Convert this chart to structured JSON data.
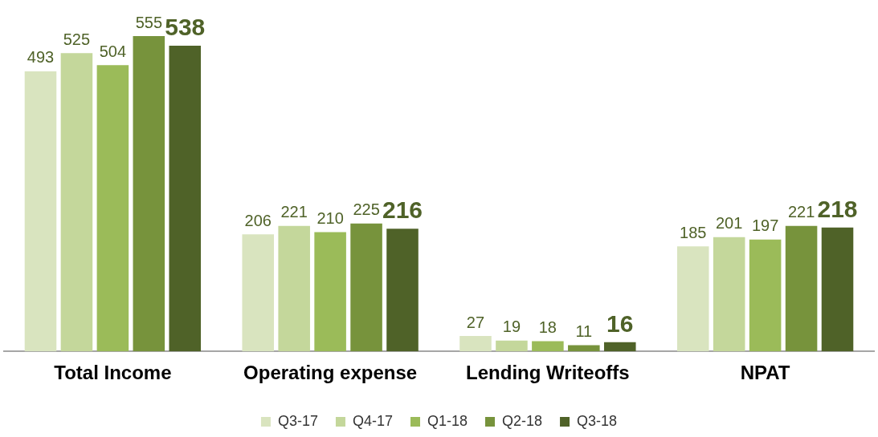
{
  "chart_data": {
    "type": "bar",
    "categories": [
      "Total Income",
      "Operating expense",
      "Lending Writeoffs",
      "NPAT"
    ],
    "series": [
      {
        "name": "Q3-17",
        "color": "#d9e4bf",
        "values": [
          493,
          206,
          27,
          185
        ]
      },
      {
        "name": "Q4-17",
        "color": "#c4d79b",
        "values": [
          525,
          221,
          19,
          201
        ]
      },
      {
        "name": "Q1-18",
        "color": "#9bbb59",
        "values": [
          504,
          210,
          18,
          197
        ]
      },
      {
        "name": "Q2-18",
        "color": "#77933c",
        "values": [
          555,
          225,
          11,
          221
        ]
      },
      {
        "name": "Q3-18",
        "color": "#4f6228",
        "values": [
          538,
          216,
          16,
          218
        ]
      }
    ],
    "data_labels": true,
    "legend": "bottom",
    "grid": false
  }
}
